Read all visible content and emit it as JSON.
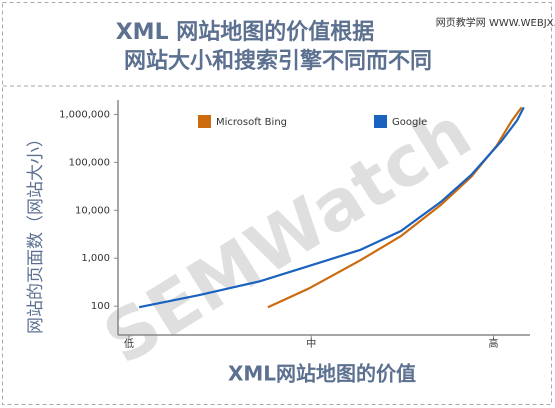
{
  "chart_data": {
    "type": "line",
    "title": "XML 网站地图的价值根据",
    "subtitle": "网站大小和搜索引擎不同而不同",
    "watermark": "网页教学网 WWW.WEBJX.COM",
    "annotation": "SEMWatch",
    "x_label": "XML网站地图的价值",
    "y_label": "网站的页面数（网站大小）",
    "log_y": true,
    "xlim": [
      -3,
      110
    ],
    "xticks": [
      {
        "value": 0,
        "label": "低"
      },
      {
        "value": 50,
        "label": "中"
      },
      {
        "value": 100,
        "label": "高"
      }
    ],
    "ylim": [
      25,
      2000000
    ],
    "yticks": [
      100,
      {
        "value": 1000,
        "label": "1,000"
      },
      {
        "value": 10000,
        "label": "10,000"
      },
      {
        "value": 100000,
        "label": "100,000"
      },
      {
        "value": 1000000,
        "label": "1,000,000"
      }
    ],
    "series": [
      {
        "name": "Microsoft Bing",
        "color": "#cc6a0e",
        "x": [
          38.1,
          49.2,
          63.5,
          74.6,
          85.6,
          93.9,
          100.8,
          105,
          107.7
        ],
        "values": [
          95,
          230,
          910,
          2900,
          13000,
          50000,
          220000,
          740000,
          1400000
        ]
      },
      {
        "name": "Google",
        "color": "#1a62c0",
        "x": [
          2.8,
          19.3,
          35.9,
          49.2,
          63.5,
          74.6,
          85.6,
          93.9,
          102.2,
          106.4,
          108.3
        ],
        "values": [
          95,
          170,
          330,
          680,
          1500,
          3700,
          15000,
          55000,
          280000,
          740000,
          1400000
        ]
      }
    ]
  }
}
